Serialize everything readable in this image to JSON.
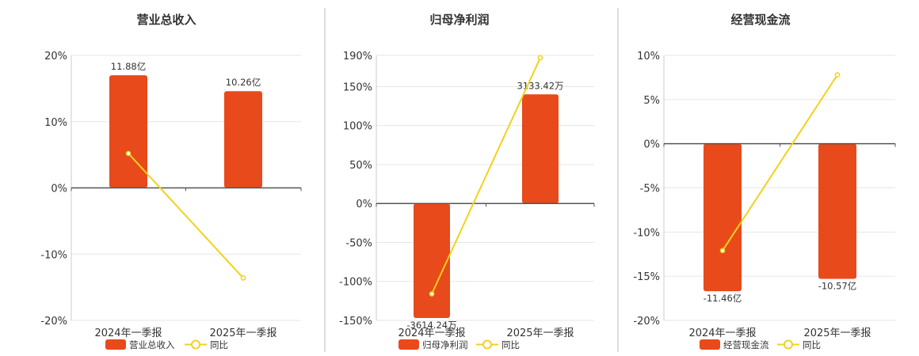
{
  "colors": {
    "bar": "#E84A1B",
    "line": "#F2D21B",
    "divider": "#BBBBBB",
    "grid": "#E6E6E6",
    "axis": "#555555"
  },
  "chart_data": [
    {
      "type": "bar",
      "title": "营业总收入",
      "categories": [
        "2024年一季报",
        "2025年一季报"
      ],
      "series": [
        {
          "name": "营业总收入",
          "type": "bar",
          "values": [
            17,
            14.6
          ],
          "labels": [
            "11.88亿",
            "10.26亿"
          ]
        },
        {
          "name": "同比",
          "type": "line",
          "values": [
            5.2,
            -13.6
          ]
        }
      ],
      "yticks": [
        20,
        10,
        0,
        -10,
        -20
      ],
      "tick_labels": [
        "20%",
        "10%",
        "0%",
        "-10%",
        "-20%"
      ],
      "ylim": [
        -20,
        20
      ]
    },
    {
      "type": "bar",
      "title": "归母净利润",
      "categories": [
        "2024年一季报",
        "2025年一季报"
      ],
      "series": [
        {
          "name": "归母净利润",
          "type": "bar",
          "values": [
            -147,
            140
          ],
          "labels": [
            "-3614.24万",
            "3133.42万"
          ]
        },
        {
          "name": "同比",
          "type": "line",
          "values": [
            -116,
            187
          ]
        }
      ],
      "yticks": [
        190,
        150,
        100,
        50,
        0,
        -50,
        -100,
        -150
      ],
      "tick_labels": [
        "190%",
        "150%",
        "100%",
        "50%",
        "0%",
        "-50%",
        "-100%",
        "-150%"
      ],
      "ylim": [
        -150,
        190
      ]
    },
    {
      "type": "bar",
      "title": "经营现金流",
      "categories": [
        "2024年一季报",
        "2025年一季报"
      ],
      "series": [
        {
          "name": "经营现金流",
          "type": "bar",
          "values": [
            -16.7,
            -15.3
          ],
          "labels": [
            "-11.46亿",
            "-10.57亿"
          ]
        },
        {
          "name": "同比",
          "type": "line",
          "values": [
            -12.1,
            7.8
          ]
        }
      ],
      "yticks": [
        10,
        5,
        0,
        -5,
        -10,
        -15,
        -20
      ],
      "tick_labels": [
        "10%",
        "5%",
        "0%",
        "-5%",
        "-10%",
        "-15%",
        "-20%"
      ],
      "ylim": [
        -20,
        10
      ]
    }
  ]
}
